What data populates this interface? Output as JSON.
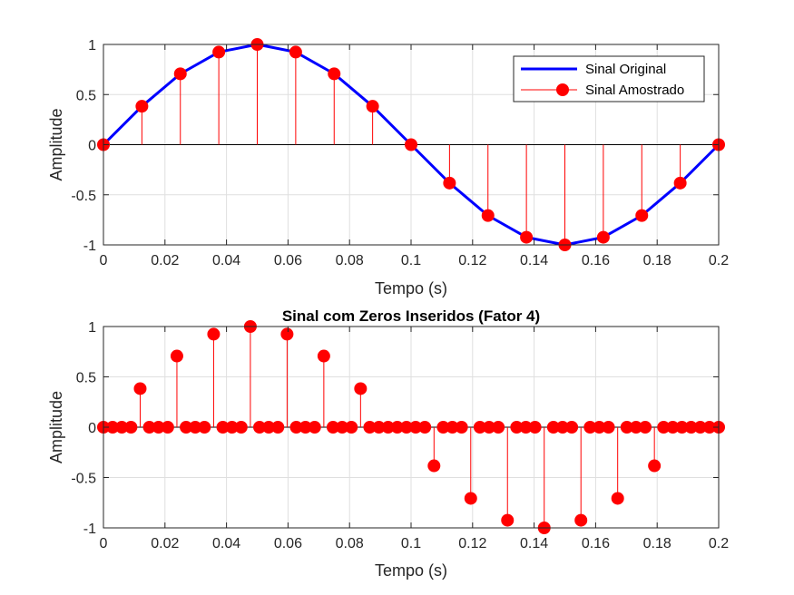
{
  "chart_data": [
    {
      "type": "line",
      "title": "",
      "xlabel": "Tempo (s)",
      "ylabel": "Amplitude",
      "xlim": [
        0,
        0.2
      ],
      "ylim": [
        -1,
        1
      ],
      "grid": true,
      "legend_position": "top-right",
      "xticks": [
        "0",
        "0.02",
        "0.04",
        "0.06",
        "0.08",
        "0.1",
        "0.12",
        "0.14",
        "0.16",
        "0.18",
        "0.2"
      ],
      "yticks": [
        "-1",
        "-0.5",
        "0",
        "0.5",
        "1"
      ],
      "series": [
        {
          "name": "Sinal Original",
          "style": "line",
          "color": "#0000ff",
          "x": [
            0,
            0.0125,
            0.025,
            0.0375,
            0.05,
            0.0625,
            0.075,
            0.0875,
            0.1,
            0.1125,
            0.125,
            0.1375,
            0.15,
            0.1625,
            0.175,
            0.1875,
            0.2
          ],
          "values": [
            0,
            0.383,
            0.707,
            0.924,
            1,
            0.924,
            0.707,
            0.383,
            0,
            -0.383,
            -0.707,
            -0.924,
            -1,
            -0.924,
            -0.707,
            -0.383,
            0
          ]
        },
        {
          "name": "Sinal Amostrado",
          "style": "stem",
          "color": "#ff0000",
          "x": [
            0,
            0.0125,
            0.025,
            0.0375,
            0.05,
            0.0625,
            0.075,
            0.0875,
            0.1,
            0.1125,
            0.125,
            0.1375,
            0.15,
            0.1625,
            0.175,
            0.1875,
            0.2
          ],
          "values": [
            0,
            0.383,
            0.707,
            0.924,
            1,
            0.924,
            0.707,
            0.383,
            0,
            -0.383,
            -0.707,
            -0.924,
            -1,
            -0.924,
            -0.707,
            -0.383,
            0
          ]
        }
      ]
    },
    {
      "type": "scatter",
      "title": "Sinal com Zeros Inseridos (Fator 4)",
      "xlabel": "Tempo (s)",
      "ylabel": "Amplitude",
      "xlim": [
        0,
        0.2
      ],
      "ylim": [
        -1,
        1
      ],
      "grid": true,
      "xticks": [
        "0",
        "0.02",
        "0.04",
        "0.06",
        "0.08",
        "0.1",
        "0.12",
        "0.14",
        "0.16",
        "0.18",
        "0.2"
      ],
      "yticks": [
        "-1",
        "-0.5",
        "0",
        "0.5",
        "1"
      ],
      "series": [
        {
          "style": "stem",
          "color": "#ff0000",
          "x": [
            0,
            0.002985,
            0.00597,
            0.008955,
            0.01194,
            0.014925,
            0.01791,
            0.020896,
            0.023881,
            0.026866,
            0.029851,
            0.032836,
            0.035821,
            0.038806,
            0.041791,
            0.044776,
            0.047761,
            0.050746,
            0.053731,
            0.056716,
            0.059701,
            0.062687,
            0.065672,
            0.068657,
            0.071642,
            0.074627,
            0.077612,
            0.080597,
            0.083582,
            0.086567,
            0.089552,
            0.092537,
            0.095522,
            0.098507,
            0.101493,
            0.104478,
            0.107463,
            0.110448,
            0.113433,
            0.116418,
            0.119403,
            0.122388,
            0.125373,
            0.128358,
            0.131343,
            0.134328,
            0.137313,
            0.140299,
            0.143284,
            0.146269,
            0.149254,
            0.152239,
            0.155224,
            0.158209,
            0.161194,
            0.164179,
            0.167164,
            0.170149,
            0.173134,
            0.176119,
            0.179104,
            0.18209,
            0.185075,
            0.18806,
            0.191045,
            0.19403,
            0.197015,
            0.2
          ],
          "values": [
            0,
            0,
            0,
            0,
            0.383,
            0,
            0,
            0,
            0.707,
            0,
            0,
            0,
            0.924,
            0,
            0,
            0,
            1,
            0,
            0,
            0,
            0.924,
            0,
            0,
            0,
            0.707,
            0,
            0,
            0,
            0.383,
            0,
            0,
            0,
            0,
            0,
            0,
            0,
            -0.383,
            0,
            0,
            0,
            -0.707,
            0,
            0,
            0,
            -0.924,
            0,
            0,
            0,
            -1,
            0,
            0,
            0,
            -0.924,
            0,
            0,
            0,
            -0.707,
            0,
            0,
            0,
            -0.383,
            0,
            0,
            0,
            0,
            0,
            0,
            0
          ]
        }
      ]
    }
  ]
}
